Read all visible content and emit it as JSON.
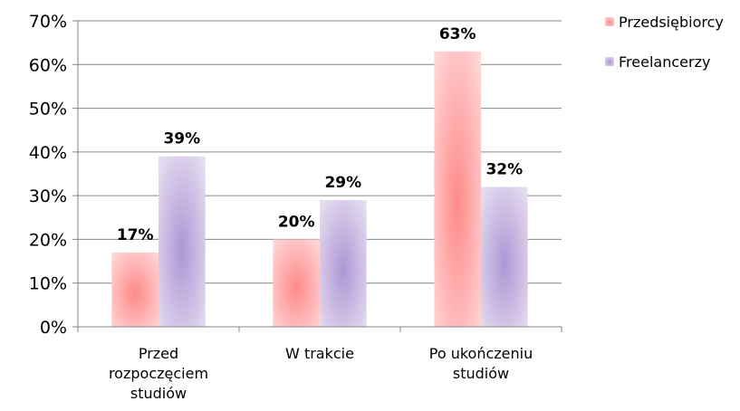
{
  "chart_data": {
    "type": "bar",
    "categories": [
      [
        "Przed",
        "rozpoczęciem",
        "studiów"
      ],
      [
        "W trakcie"
      ],
      [
        "Po ukończeniu",
        "studiów"
      ]
    ],
    "series": [
      {
        "name": "Przedsiębiorcy",
        "values": [
          17,
          20,
          63
        ],
        "labels": [
          "17%",
          "20%",
          "63%"
        ],
        "color": "#ff8080"
      },
      {
        "name": "Freelancerzy",
        "values": [
          39,
          29,
          32
        ],
        "labels": [
          "39%",
          "29%",
          "32%"
        ],
        "color": "#a088c8"
      }
    ],
    "yticks": [
      "0%",
      "10%",
      "20%",
      "30%",
      "40%",
      "50%",
      "60%",
      "70%"
    ],
    "ylim": [
      0,
      70
    ],
    "grid": true,
    "legend": "right"
  }
}
